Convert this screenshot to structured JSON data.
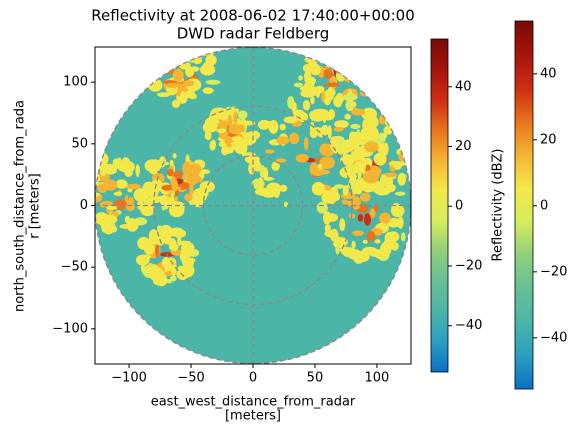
{
  "chart_data": {
    "type": "radar-ppi",
    "title": "Reflectivity at 2008-06-02 17:40:00+00:00",
    "subtitle": "DWD radar Feldberg",
    "x_label": [
      "east_west_distance_from_radar",
      "[meters]"
    ],
    "y_label": [
      "north_south_distance_from_rada",
      "r [meters]"
    ],
    "xlim": [
      -127.5,
      127.5
    ],
    "ylim": [
      -128.5,
      128.5
    ],
    "xticks": [
      {
        "value": -100,
        "label": "−100"
      },
      {
        "value": -50,
        "label": "−50"
      },
      0,
      50,
      100
    ],
    "yticks": [
      {
        "value": -100,
        "label": "−100"
      },
      {
        "value": -50,
        "label": "−50"
      },
      0,
      50,
      100
    ],
    "range_rings": [
      40,
      80,
      127.5
    ],
    "colorbar_label": "Reflectivity (dBZ)",
    "clim": [
      -55.5,
      56
    ],
    "cticks": [
      {
        "value": -40,
        "label": "−40"
      },
      {
        "value": -20,
        "label": "−20"
      },
      0,
      20,
      40
    ],
    "colormap": [
      "#0b6fc4",
      "#2a9fc0",
      "#4bb5a8",
      "#66bf95",
      "#8fcf7a",
      "#d6ec5e",
      "#f2e84a",
      "#f5b431",
      "#e8731d",
      "#cf2c13",
      "#a5150c",
      "#7a0a06"
    ]
  }
}
